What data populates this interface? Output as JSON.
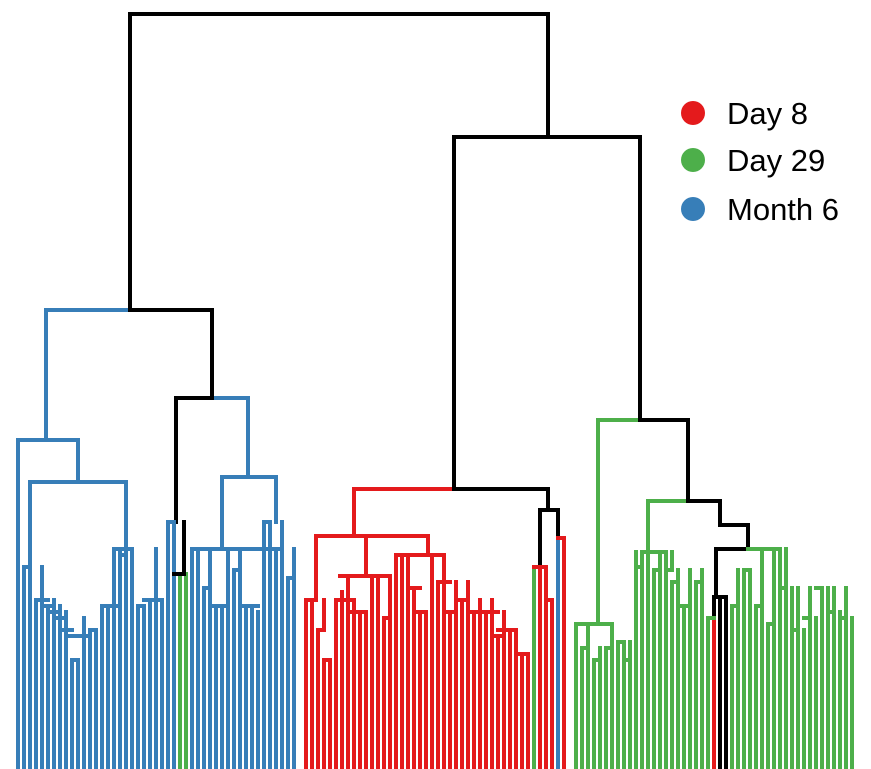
{
  "chart_data": {
    "type": "dendrogram",
    "title": "",
    "xlabel": "",
    "ylabel": "",
    "leaf_count": 138,
    "series": [
      {
        "name": "Day 8",
        "color": "#e41a1c"
      },
      {
        "name": "Day 29",
        "color": "#4daf4a"
      },
      {
        "name": "Month 6",
        "color": "#377eb8"
      }
    ],
    "internal_color": "#000000",
    "legend_position": "top-right",
    "axes_visible": false
  }
}
